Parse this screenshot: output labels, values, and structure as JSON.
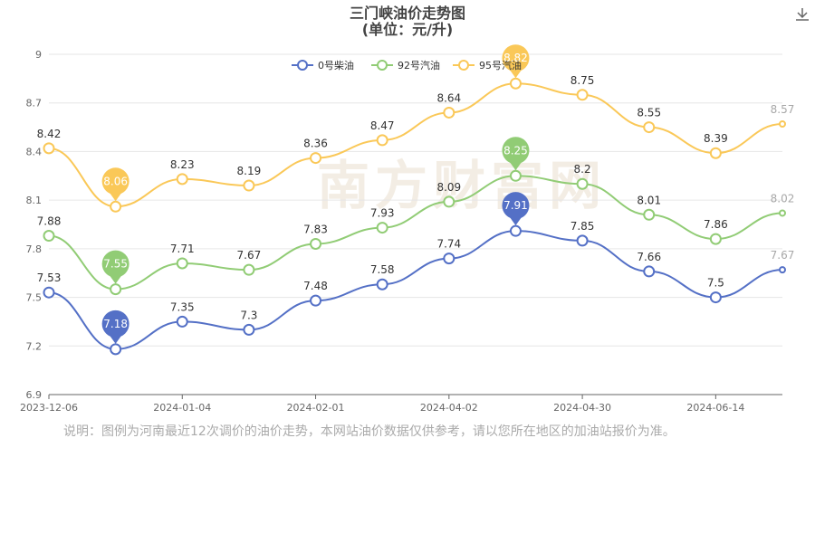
{
  "title": "三门峡油价走势图",
  "subtitle": "(单位：元/升)",
  "note": "说明：图例为河南最近12次调价的油价走势，本网站油价数据仅供参考，请以您所在地区的加油站报价为准。",
  "watermark": "南方财富网",
  "icons": {
    "download": "download-icon"
  },
  "colors": {
    "diesel": "#5470c6",
    "gas92": "#91cc75",
    "gas95": "#fac858",
    "grid": "#e6e6e6",
    "axis": "#666666"
  },
  "chart_data": {
    "type": "line",
    "x_tick_labels": [
      "2023-12-06",
      "2024-01-04",
      "2024-02-01",
      "2024-04-02",
      "2024-04-30",
      "2024-06-14"
    ],
    "y_ticks": [
      6.9,
      7.2,
      7.5,
      7.8,
      8.1,
      8.4,
      8.7,
      9
    ],
    "ylim": [
      6.9,
      9
    ],
    "grid": "horizontal",
    "legend_position": "top-center",
    "series": [
      {
        "name": "0号柴油",
        "color": "#5470c6",
        "values": [
          7.53,
          7.18,
          7.35,
          7.3,
          7.48,
          7.58,
          7.74,
          7.91,
          7.85,
          7.66,
          7.5,
          7.67
        ],
        "pin_max": 7,
        "pin_min": 1
      },
      {
        "name": "92号汽油",
        "color": "#91cc75",
        "values": [
          7.88,
          7.55,
          7.71,
          7.67,
          7.83,
          7.93,
          8.09,
          8.25,
          8.2,
          8.01,
          7.86,
          8.02
        ],
        "pin_max": 7,
        "pin_min": 1
      },
      {
        "name": "95号汽油",
        "color": "#fac858",
        "values": [
          8.42,
          8.06,
          8.23,
          8.19,
          8.36,
          8.47,
          8.64,
          8.82,
          8.75,
          8.55,
          8.39,
          8.57
        ],
        "pin_max": 7,
        "pin_min": 1
      }
    ]
  }
}
